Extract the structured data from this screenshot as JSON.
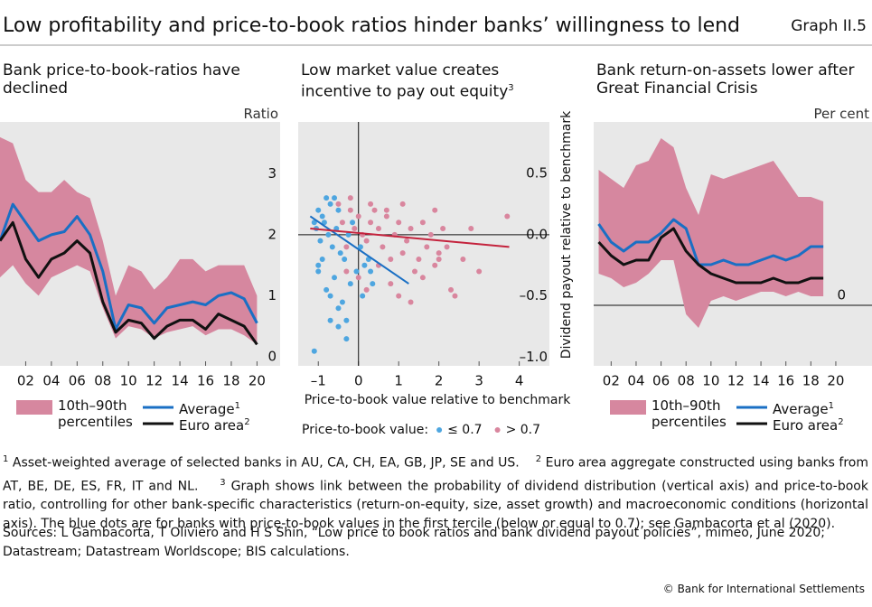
{
  "header": {
    "title": "Low profitability and price-to-book ratios hinder banks’ willingness to lend",
    "graph_label": "Graph II.5"
  },
  "chart_data": [
    {
      "type": "line",
      "title": "Bank price-to-book-ratios have declined",
      "unit_label": "Ratio",
      "x": [
        2000,
        2001,
        2002,
        2003,
        2004,
        2005,
        2006,
        2007,
        2008,
        2009,
        2010,
        2011,
        2012,
        2013,
        2014,
        2015,
        2016,
        2017,
        2018,
        2019,
        2020
      ],
      "band": {
        "name": "10th–90th percentiles",
        "color": "#d6879f",
        "low": [
          1.3,
          1.5,
          1.2,
          1.0,
          1.3,
          1.4,
          1.5,
          1.4,
          0.8,
          0.3,
          0.5,
          0.45,
          0.3,
          0.4,
          0.45,
          0.5,
          0.35,
          0.45,
          0.45,
          0.35,
          0.2
        ],
        "high": [
          3.6,
          3.5,
          2.9,
          2.7,
          2.7,
          2.9,
          2.7,
          2.6,
          1.9,
          1.0,
          1.5,
          1.4,
          1.1,
          1.3,
          1.6,
          1.6,
          1.4,
          1.5,
          1.5,
          1.5,
          1.0
        ]
      },
      "series": [
        {
          "name": "Average",
          "note": "1",
          "color": "#1a6fc4",
          "values": [
            1.9,
            2.5,
            2.2,
            1.9,
            2.0,
            2.05,
            2.3,
            2.0,
            1.4,
            0.45,
            0.85,
            0.8,
            0.55,
            0.8,
            0.85,
            0.9,
            0.85,
            1.0,
            1.05,
            0.95,
            0.55
          ]
        },
        {
          "name": "Euro area",
          "note": "2",
          "color": "#111111",
          "values": [
            1.9,
            2.2,
            1.6,
            1.3,
            1.6,
            1.7,
            1.9,
            1.7,
            0.9,
            0.4,
            0.6,
            0.55,
            0.3,
            0.5,
            0.6,
            0.6,
            0.45,
            0.7,
            0.6,
            0.5,
            0.2
          ]
        }
      ],
      "xlim": [
        2000,
        2021.8
      ],
      "ylim": [
        -0.15,
        3.85
      ],
      "xticks": [
        {
          "value": 2002,
          "label": "02"
        },
        {
          "value": 2004,
          "label": "04"
        },
        {
          "value": 2006,
          "label": "06"
        },
        {
          "value": 2008,
          "label": "08"
        },
        {
          "value": 2010,
          "label": "10"
        },
        {
          "value": 2012,
          "label": "12"
        },
        {
          "value": 2014,
          "label": "14"
        },
        {
          "value": 2016,
          "label": "16"
        },
        {
          "value": 2018,
          "label": "18"
        },
        {
          "value": 2020,
          "label": "20"
        }
      ],
      "yticks": [
        0,
        1,
        2,
        3
      ],
      "grid": false
    },
    {
      "type": "scatter",
      "title": "Low market value creates incentive to pay out equity",
      "title_note": "3",
      "x_label": "Price-to-book value relative to benchmark",
      "y_label": "Dividend payout relative to benchmark",
      "legend_title": "Price-to-book value:",
      "series": [
        {
          "name": "≤ 0.7",
          "color": "#4ea6e0",
          "x": [
            -1.1,
            -1.0,
            -0.9,
            -0.8,
            -0.7,
            -0.6,
            -0.5,
            -1.05,
            -0.95,
            -0.85,
            -0.75,
            -0.65,
            -0.55,
            -0.45,
            -0.35,
            -0.25,
            -0.15,
            -0.05,
            0.05,
            0.15,
            0.25,
            0.35,
            -1.0,
            -0.9,
            -0.8,
            -0.7,
            -0.6,
            -0.5,
            -0.4,
            -0.3,
            -0.2,
            -1.0,
            -0.7,
            -0.5,
            -0.3,
            0.1,
            0.3,
            -1.1
          ],
          "values": [
            0.1,
            0.2,
            0.15,
            0.3,
            0.25,
            0.3,
            0.2,
            0.05,
            -0.05,
            0.1,
            0.0,
            -0.1,
            0.05,
            -0.15,
            -0.2,
            0.0,
            0.1,
            -0.3,
            -0.1,
            -0.25,
            -0.2,
            -0.4,
            -0.3,
            -0.2,
            -0.45,
            -0.5,
            -0.35,
            -0.6,
            -0.55,
            -0.7,
            -0.4,
            -0.25,
            -0.7,
            -0.75,
            -0.85,
            -0.5,
            -0.3,
            -0.95
          ]
        },
        {
          "name": "> 0.7",
          "color": "#d9869e",
          "x": [
            -0.5,
            -0.4,
            -0.3,
            -0.2,
            -0.1,
            0.0,
            0.1,
            0.2,
            0.3,
            0.4,
            0.5,
            0.6,
            0.7,
            0.8,
            0.9,
            1.0,
            1.1,
            1.2,
            1.3,
            1.4,
            1.5,
            1.6,
            1.7,
            1.8,
            1.9,
            2.0,
            2.1,
            2.2,
            2.4,
            2.6,
            2.8,
            3.0,
            3.7,
            -0.3,
            0.0,
            0.2,
            0.5,
            0.8,
            1.0,
            1.3,
            1.6,
            2.0,
            2.3,
            -0.2,
            0.3,
            0.7,
            1.1,
            1.9
          ],
          "values": [
            0.25,
            0.1,
            -0.1,
            0.2,
            0.05,
            0.15,
            0.0,
            -0.05,
            0.1,
            0.2,
            0.05,
            -0.1,
            0.15,
            -0.2,
            0.0,
            0.1,
            -0.15,
            -0.05,
            0.05,
            -0.3,
            -0.2,
            0.1,
            -0.1,
            0.0,
            -0.25,
            -0.15,
            0.05,
            -0.1,
            -0.5,
            -0.2,
            0.05,
            -0.3,
            0.15,
            -0.3,
            -0.35,
            -0.45,
            -0.25,
            -0.4,
            -0.5,
            -0.55,
            -0.35,
            -0.2,
            -0.45,
            0.3,
            0.25,
            0.2,
            0.25,
            0.2
          ]
        }
      ],
      "fit_lines": [
        {
          "color": "#1a6fc4",
          "x": [
            -1.2,
            1.25
          ],
          "values": [
            0.15,
            -0.4
          ]
        },
        {
          "color": "#c4233d",
          "x": [
            -1.2,
            3.75
          ],
          "values": [
            0.05,
            -0.1
          ]
        }
      ],
      "xlim": [
        -1.5,
        4.75
      ],
      "ylim": [
        -1.07,
        0.92
      ],
      "xticks": [
        {
          "value": -1,
          "label": "–1"
        },
        0,
        1,
        2,
        3,
        4
      ],
      "yticks": [
        {
          "value": 0.5,
          "label": "0.5"
        },
        {
          "value": 0,
          "label": "0.0"
        },
        {
          "value": -0.5,
          "label": "–0.5"
        },
        {
          "value": -1,
          "label": "–1.0"
        }
      ],
      "axes_at_zero": true
    },
    {
      "type": "line",
      "title": "Bank return-on-assets lower after Great Financial Crisis",
      "unit_label": "Per cent",
      "x": [
        2001,
        2002,
        2003,
        2004,
        2005,
        2006,
        2007,
        2008,
        2009,
        2010,
        2011,
        2012,
        2013,
        2014,
        2015,
        2016,
        2017,
        2018,
        2019
      ],
      "band": {
        "name": "10th–90th percentiles",
        "color": "#d6879f",
        "low": [
          0.35,
          0.3,
          0.2,
          0.25,
          0.35,
          0.5,
          0.5,
          -0.1,
          -0.25,
          0.05,
          0.1,
          0.05,
          0.1,
          0.15,
          0.15,
          0.1,
          0.15,
          0.1,
          0.1
        ],
        "high": [
          1.5,
          1.4,
          1.3,
          1.55,
          1.6,
          1.85,
          1.75,
          1.3,
          1.0,
          1.45,
          1.4,
          1.45,
          1.5,
          1.55,
          1.6,
          1.4,
          1.2,
          1.2,
          1.15
        ]
      },
      "series": [
        {
          "name": "Average",
          "note": "1",
          "color": "#1a6fc4",
          "values": [
            0.9,
            0.7,
            0.6,
            0.7,
            0.7,
            0.8,
            0.95,
            0.85,
            0.45,
            0.45,
            0.5,
            0.45,
            0.45,
            0.5,
            0.55,
            0.5,
            0.55,
            0.65,
            0.65
          ]
        },
        {
          "name": "Euro area",
          "note": "2",
          "color": "#111111",
          "values": [
            0.7,
            0.55,
            0.45,
            0.5,
            0.5,
            0.75,
            0.85,
            0.6,
            0.45,
            0.35,
            0.3,
            0.25,
            0.25,
            0.25,
            0.3,
            0.25,
            0.25,
            0.3,
            0.3
          ]
        }
      ],
      "xlim": [
        2000.6,
        2022.9
      ],
      "ylim": [
        -0.67,
        2.03
      ],
      "xticks": [
        {
          "value": 2002,
          "label": "02"
        },
        {
          "value": 2004,
          "label": "04"
        },
        {
          "value": 2006,
          "label": "06"
        },
        {
          "value": 2008,
          "label": "08"
        },
        {
          "value": 2010,
          "label": "10"
        },
        {
          "value": 2012,
          "label": "12"
        },
        {
          "value": 2014,
          "label": "14"
        },
        {
          "value": 2016,
          "label": "16"
        },
        {
          "value": 2018,
          "label": "18"
        },
        {
          "value": 2020,
          "label": "20"
        }
      ],
      "yticks": [
        0
      ],
      "grid": true
    }
  ],
  "footnotes": [
    {
      "mark": "1",
      "text": "Asset-weighted average of selected banks in AU, CA, CH, EA, GB, JP, SE and US."
    },
    {
      "mark": "2",
      "text": "Euro area aggregate constructed using banks from AT, BE, DE, ES, FR, IT and NL."
    },
    {
      "mark": "3",
      "text": "Graph shows link between the probability of dividend distribution (vertical axis) and price-to-book ratio, controlling for other bank-specific characteristics (return-on-equity, size, asset growth) and macroeconomic conditions (horizontal axis). The blue dots are for banks with price-to-book values in the first tercile (below or equal to 0.7); see Gambacorta et al (2020)."
    }
  ],
  "sources": "Sources: L Gambacorta, T Oliviero and H S Shin, “Low price to book ratios and bank dividend payout policies”, mimeo, June 2020; Datastream; Datastream Worldscope; BIS calculations.",
  "copyright": "© Bank for International Settlements"
}
